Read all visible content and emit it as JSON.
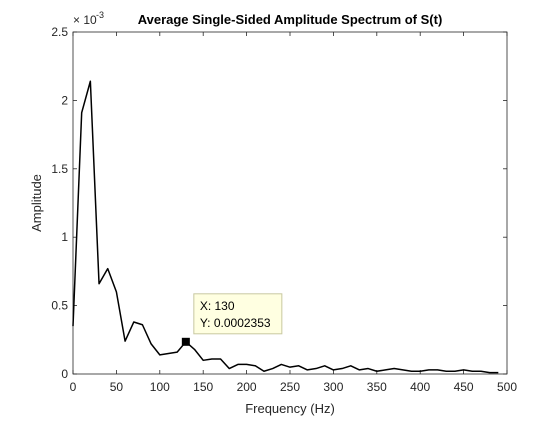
{
  "chart_data": {
    "type": "line",
    "title": "Average Single-Sided Amplitude Spectrum of S(t)",
    "xlabel": "Frequency (Hz)",
    "ylabel": "Amplitude",
    "xlim": [
      0,
      500
    ],
    "ylim": [
      0,
      2.5
    ],
    "y_exponent_label": "× 10",
    "y_exponent": "-3",
    "xticks": [
      0,
      50,
      100,
      150,
      200,
      250,
      300,
      350,
      400,
      450,
      500
    ],
    "xtick_labels": [
      "0",
      "50",
      "100",
      "150",
      "200",
      "250",
      "300",
      "350",
      "400",
      "450",
      "500"
    ],
    "yticks": [
      0,
      0.5,
      1,
      1.5,
      2,
      2.5
    ],
    "ytick_labels": [
      "0",
      "0.5",
      "1",
      "1.5",
      "2",
      "2.5"
    ],
    "grid": false,
    "series": [
      {
        "color": "#000000",
        "x": [
          0,
          10,
          20,
          30,
          40,
          50,
          60,
          70,
          80,
          90,
          100,
          110,
          120,
          130,
          140,
          150,
          160,
          170,
          180,
          190,
          200,
          210,
          220,
          230,
          240,
          250,
          260,
          270,
          280,
          290,
          300,
          310,
          320,
          330,
          340,
          350,
          360,
          370,
          380,
          390,
          400,
          410,
          420,
          430,
          440,
          450,
          460,
          470,
          480,
          490
        ],
        "values": [
          0.35,
          1.91,
          2.14,
          0.66,
          0.77,
          0.6,
          0.24,
          0.38,
          0.36,
          0.22,
          0.14,
          0.15,
          0.16,
          0.2353,
          0.18,
          0.1,
          0.11,
          0.11,
          0.04,
          0.07,
          0.07,
          0.06,
          0.02,
          0.04,
          0.07,
          0.05,
          0.06,
          0.03,
          0.04,
          0.06,
          0.03,
          0.04,
          0.06,
          0.03,
          0.04,
          0.02,
          0.03,
          0.04,
          0.03,
          0.02,
          0.02,
          0.03,
          0.03,
          0.02,
          0.02,
          0.03,
          0.02,
          0.02,
          0.01,
          0.01
        ]
      }
    ],
    "datatip": {
      "x": 130,
      "y": 0.0002353,
      "x_label": "X: 130",
      "y_label": "Y: 0.0002353",
      "background": "#ffffe1",
      "border": "#c8c8a0"
    },
    "colors": {
      "axes": "#262626",
      "line": "#000000",
      "background": "#ffffff"
    }
  }
}
